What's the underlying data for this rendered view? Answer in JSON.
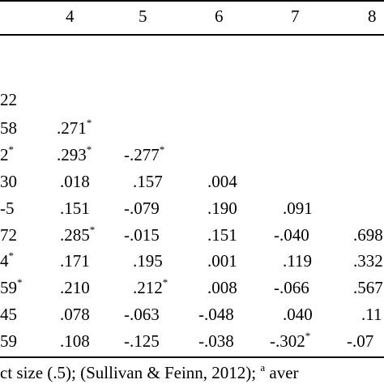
{
  "table": {
    "header": [
      "4",
      "5",
      "6",
      "7",
      "8"
    ],
    "rows": [
      [
        "22",
        "",
        "",
        "",
        "",
        ""
      ],
      [
        "58",
        ".271",
        "",
        "",
        "",
        ""
      ],
      [
        "2",
        ".293",
        "-.277",
        "",
        "",
        ""
      ],
      [
        "30",
        ".018",
        ".157",
        ".004",
        "",
        ""
      ],
      [
        "-5",
        ".151",
        "-.079",
        ".190",
        ".091",
        ""
      ],
      [
        "72",
        ".285",
        "-.015",
        ".151",
        "-.040",
        ".698"
      ],
      [
        "4",
        ".171",
        ".195",
        ".001",
        ".119",
        ".332"
      ],
      [
        "59",
        ".210",
        ".212",
        ".008",
        "-.066",
        ".567"
      ],
      [
        "45",
        ".078",
        "-.063",
        "-.048",
        ".040",
        ".11"
      ],
      [
        "59",
        ".108",
        "-.125",
        "-.038",
        "-.302",
        "-.07"
      ]
    ],
    "star_mark": "*"
  },
  "footnote": {
    "text_before": "ct size (.5); (Sullivan & Feinn, 2012); ",
    "marker": "a",
    "text_after": " aver"
  }
}
